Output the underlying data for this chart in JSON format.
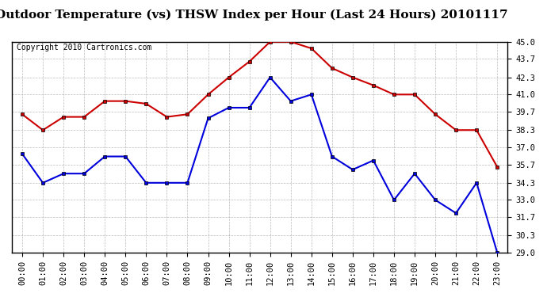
{
  "title": "Outdoor Temperature (vs) THSW Index per Hour (Last 24 Hours) 20101117",
  "copyright": "Copyright 2010 Cartronics.com",
  "hours": [
    "00:00",
    "01:00",
    "02:00",
    "03:00",
    "04:00",
    "05:00",
    "06:00",
    "07:00",
    "08:00",
    "09:00",
    "10:00",
    "11:00",
    "12:00",
    "13:00",
    "14:00",
    "15:00",
    "16:00",
    "17:00",
    "18:00",
    "19:00",
    "20:00",
    "21:00",
    "22:00",
    "23:00"
  ],
  "temp_blue": [
    36.5,
    34.3,
    35.0,
    35.0,
    36.3,
    36.3,
    34.3,
    34.3,
    34.3,
    39.2,
    40.0,
    40.0,
    42.3,
    40.5,
    41.0,
    36.3,
    35.3,
    36.0,
    33.0,
    35.0,
    33.0,
    32.0,
    34.3,
    29.0
  ],
  "thsw_red": [
    39.5,
    38.3,
    39.3,
    39.3,
    40.5,
    40.5,
    40.3,
    39.3,
    39.5,
    41.0,
    42.3,
    43.5,
    45.0,
    45.0,
    44.5,
    43.0,
    42.3,
    41.7,
    41.0,
    41.0,
    39.5,
    38.3,
    38.3,
    35.5
  ],
  "ylim_min": 29.0,
  "ylim_max": 45.0,
  "yticks": [
    29.0,
    30.3,
    31.7,
    33.0,
    34.3,
    35.7,
    37.0,
    38.3,
    39.7,
    41.0,
    42.3,
    43.7,
    45.0
  ],
  "bg_color": "#ffffff",
  "plot_bg_color": "#ffffff",
  "grid_color": "#aaaaaa",
  "blue_color": "#0000dd",
  "red_color": "#cc0000",
  "title_fontsize": 11,
  "copyright_fontsize": 7,
  "tick_fontsize": 7.5
}
